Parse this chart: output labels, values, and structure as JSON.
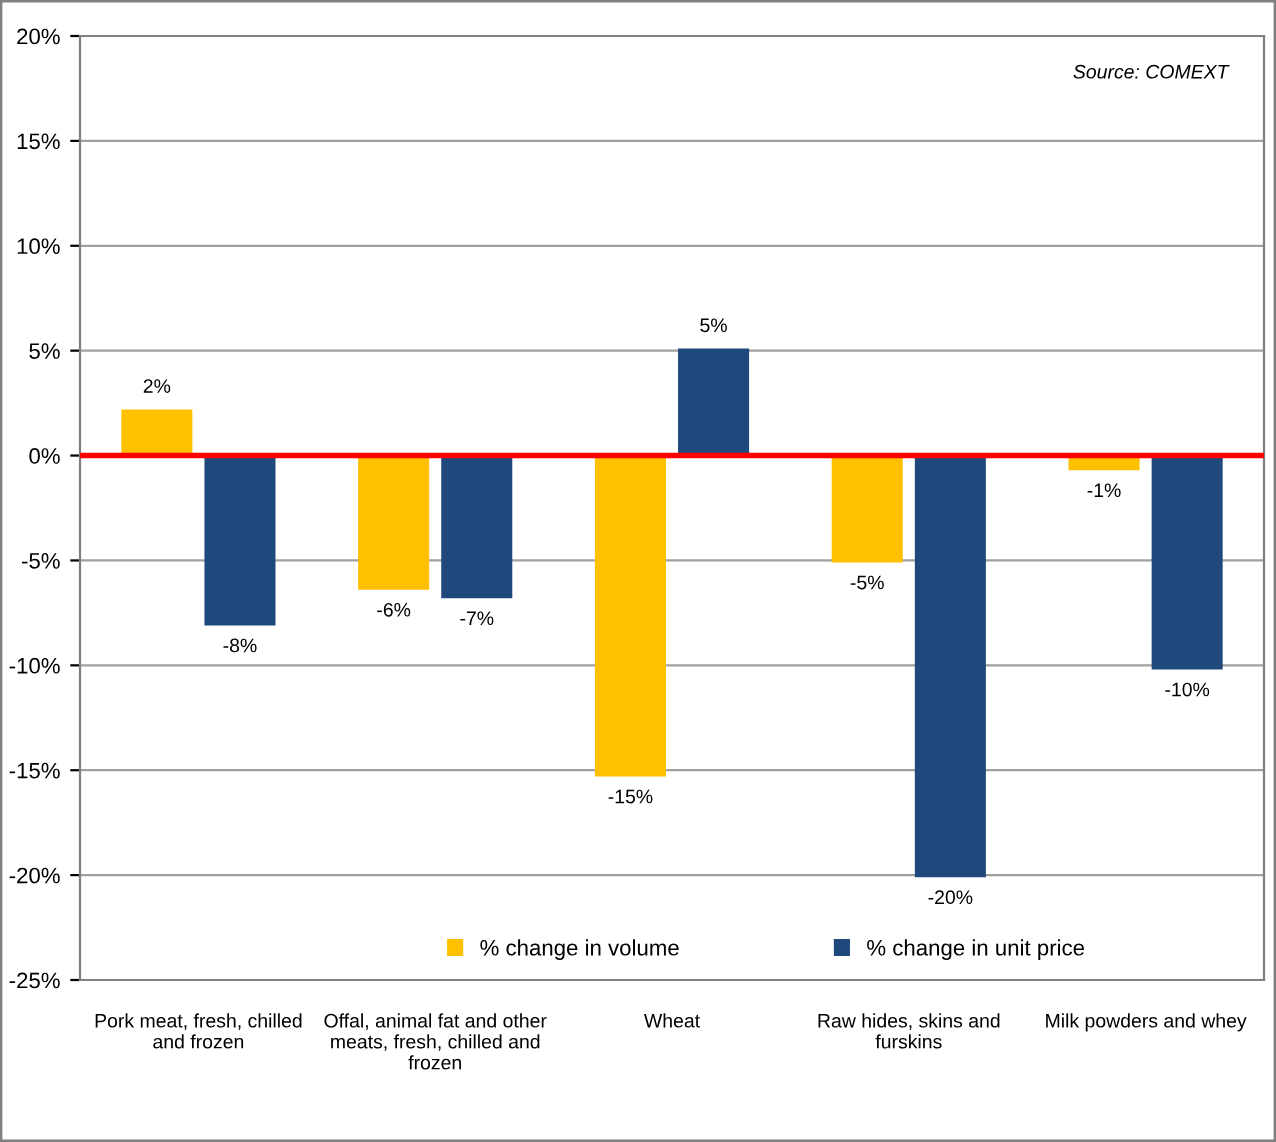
{
  "chart_data": {
    "type": "bar",
    "categories": [
      "Pork meat, fresh, chilled\nand frozen",
      "Offal, animal fat and other\nmeats, fresh, chilled and\nfrozen",
      "Wheat",
      "Raw hides, skins and\nfurskins",
      "Milk powders and whey"
    ],
    "series": [
      {
        "name": "% change in volume",
        "color": "#ffc000",
        "values": [
          2.2,
          -6.4,
          -15.3,
          -5.1,
          -0.7
        ],
        "value_labels": [
          "2%",
          "-6%",
          "-15%",
          "-5%",
          "-1%"
        ]
      },
      {
        "name": "% change in unit price",
        "color": "#1f497d",
        "values": [
          -8.1,
          -6.8,
          5.1,
          -20.1,
          -10.2
        ],
        "value_labels": [
          "-8%",
          "-7%",
          "5%",
          "-20%",
          "-10%"
        ]
      }
    ],
    "ylim": [
      -25,
      20
    ],
    "yticks": [
      {
        "value": -25,
        "label": "-25%"
      },
      {
        "value": -20,
        "label": "-20%"
      },
      {
        "value": -15,
        "label": "-15%"
      },
      {
        "value": -10,
        "label": "-10%"
      },
      {
        "value": -5,
        "label": "-5%"
      },
      {
        "value": 0,
        "label": "0%"
      },
      {
        "value": 5,
        "label": "5%"
      },
      {
        "value": 10,
        "label": "10%"
      },
      {
        "value": 15,
        "label": "15%"
      },
      {
        "value": 20,
        "label": "20%"
      }
    ],
    "grid": "y",
    "legend": "bottom",
    "ref_lines": [
      {
        "axis": "y",
        "value": 0,
        "color": "#ff0000"
      }
    ],
    "annotations": [
      "Source: COMEXT"
    ]
  }
}
